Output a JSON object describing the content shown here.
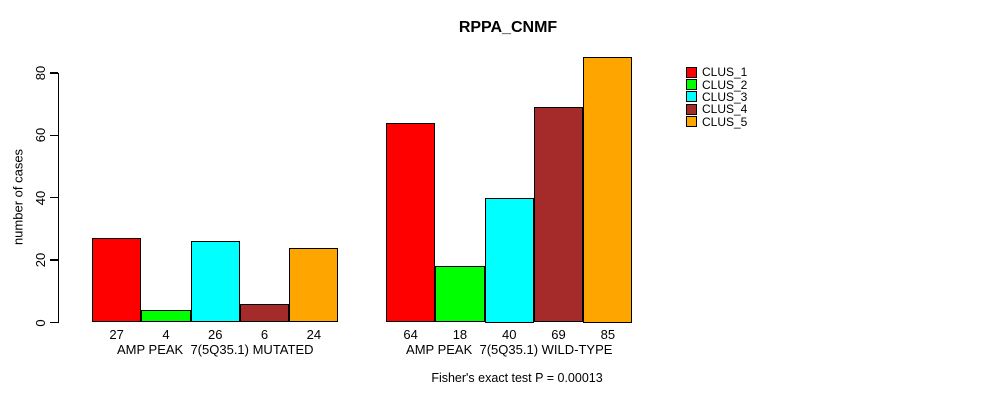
{
  "chart_data": {
    "type": "bar",
    "title": "RPPA_CNMF",
    "ylabel": "number of cases",
    "xlabel": "",
    "ylim": [
      0,
      85
    ],
    "yticks": [
      0,
      20,
      40,
      60,
      80
    ],
    "grid": false,
    "legend_position": "right",
    "bar_border_color": "#000000",
    "value_labels": "below-bars",
    "categories": [
      "AMP PEAK  7(5Q35.1) MUTATED",
      "AMP PEAK  7(5Q35.1) WILD-TYPE"
    ],
    "series": [
      {
        "name": "CLUS_1",
        "color": "#ff0000",
        "values": [
          27,
          64
        ]
      },
      {
        "name": "CLUS_2",
        "color": "#00ff00",
        "values": [
          4,
          18
        ]
      },
      {
        "name": "CLUS_3",
        "color": "#00ffff",
        "values": [
          26,
          40
        ]
      },
      {
        "name": "CLUS_4",
        "color": "#a52a2a",
        "values": [
          6,
          69
        ]
      },
      {
        "name": "CLUS_5",
        "color": "#ffa500",
        "values": [
          24,
          85
        ]
      }
    ],
    "annotation": "Fisher's exact test P = 0.00013"
  }
}
